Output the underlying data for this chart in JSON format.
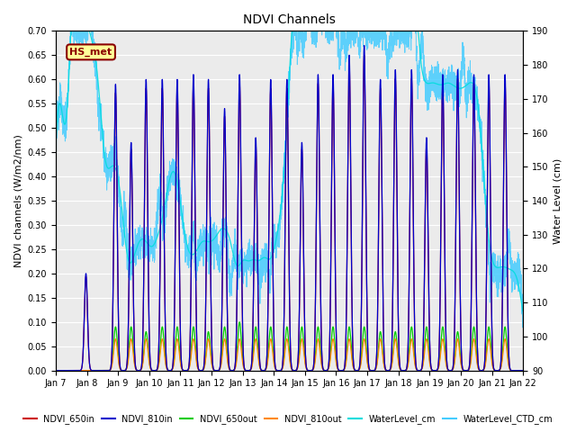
{
  "title": "NDVI Channels",
  "ylabel_left": "NDVI channels (W/m2/nm)",
  "ylabel_right": "Water Level (cm)",
  "ylim_left": [
    0.0,
    0.7
  ],
  "ylim_right": [
    90,
    190
  ],
  "yticks_left": [
    0.0,
    0.05,
    0.1,
    0.15,
    0.2,
    0.25,
    0.3,
    0.35,
    0.4,
    0.45,
    0.5,
    0.55,
    0.6,
    0.65,
    0.7
  ],
  "yticks_right": [
    90,
    100,
    110,
    120,
    130,
    140,
    150,
    160,
    170,
    180,
    190
  ],
  "annotation_text": "HS_met",
  "annotation_color": "#8B0000",
  "annotation_bg": "#FFFF99",
  "series_colors": {
    "NDVI_650in": "#CC0000",
    "NDVI_810in": "#0000CC",
    "NDVI_650out": "#00CC00",
    "NDVI_810out": "#FF8800",
    "WaterLevel_cm": "#00DDDD",
    "WaterLevel_CTD_cm": "#44CCFF"
  },
  "x_start": 7.0,
  "x_end": 22.0,
  "xtick_positions": [
    7,
    8,
    9,
    10,
    11,
    12,
    13,
    14,
    15,
    16,
    17,
    18,
    19,
    20,
    21,
    22
  ],
  "xtick_labels": [
    "Jan 7",
    "Jan 8",
    "Jan 9",
    "Jan 10",
    "Jan 11",
    "Jan 12",
    "Jan 13",
    "Jan 14",
    "Jan 15",
    "Jan 16",
    "Jan 17",
    "Jan 18",
    "Jan 19",
    "Jan 20",
    "Jan 21",
    "Jan 22"
  ],
  "plot_bg": "#EBEBEB",
  "ndvi_spike_centers": [
    7.97,
    8.45,
    8.92,
    9.42,
    9.9,
    10.42,
    10.9,
    11.42,
    11.9,
    12.42,
    12.9,
    13.42,
    13.9,
    14.42,
    14.9,
    15.42,
    15.9,
    16.42,
    16.9,
    17.42,
    17.9,
    18.42,
    18.9,
    19.42,
    19.9,
    20.42,
    20.9,
    21.42
  ],
  "heights_810in": [
    0.2,
    0.0,
    0.59,
    0.47,
    0.6,
    0.6,
    0.6,
    0.61,
    0.6,
    0.54,
    0.61,
    0.48,
    0.6,
    0.6,
    0.47,
    0.61,
    0.61,
    0.65,
    0.67,
    0.6,
    0.62,
    0.62,
    0.48,
    0.61,
    0.62,
    0.61,
    0.61,
    0.61
  ],
  "heights_650out": [
    0.0,
    0.0,
    0.09,
    0.09,
    0.08,
    0.09,
    0.09,
    0.09,
    0.08,
    0.09,
    0.1,
    0.09,
    0.09,
    0.09,
    0.09,
    0.09,
    0.09,
    0.09,
    0.09,
    0.08,
    0.08,
    0.09,
    0.09,
    0.09,
    0.08,
    0.09,
    0.09,
    0.09
  ],
  "heights_810out": [
    0.0,
    0.0,
    0.065,
    0.065,
    0.065,
    0.065,
    0.065,
    0.065,
    0.065,
    0.065,
    0.065,
    0.065,
    0.065,
    0.065,
    0.065,
    0.065,
    0.065,
    0.065,
    0.065,
    0.065,
    0.065,
    0.065,
    0.065,
    0.065,
    0.065,
    0.065,
    0.065,
    0.065
  ],
  "tidal_peaks_cm": [
    [
      7.1,
      165
    ],
    [
      7.55,
      165
    ],
    [
      7.75,
      162
    ],
    [
      8.05,
      158
    ],
    [
      8.35,
      155
    ],
    [
      8.7,
      128
    ],
    [
      8.95,
      125
    ],
    [
      9.15,
      115
    ],
    [
      9.5,
      112
    ],
    [
      9.75,
      115
    ],
    [
      10.0,
      113
    ],
    [
      10.3,
      118
    ],
    [
      10.6,
      125
    ],
    [
      10.85,
      128
    ],
    [
      11.1,
      115
    ],
    [
      11.4,
      113
    ],
    [
      11.7,
      118
    ],
    [
      12.0,
      116
    ],
    [
      12.3,
      120
    ],
    [
      12.6,
      120
    ],
    [
      13.0,
      117
    ],
    [
      13.35,
      116
    ],
    [
      13.7,
      117
    ],
    [
      14.05,
      115
    ],
    [
      14.3,
      116
    ],
    [
      14.55,
      148
    ],
    [
      14.8,
      170
    ],
    [
      15.1,
      173
    ],
    [
      15.35,
      170
    ],
    [
      15.55,
      160
    ],
    [
      15.75,
      172
    ],
    [
      16.0,
      170
    ],
    [
      16.25,
      173
    ],
    [
      16.5,
      172
    ],
    [
      16.7,
      170
    ],
    [
      16.9,
      165
    ],
    [
      17.1,
      160
    ],
    [
      17.3,
      155
    ],
    [
      17.55,
      180
    ],
    [
      17.75,
      188
    ],
    [
      17.95,
      188
    ],
    [
      18.15,
      185
    ],
    [
      18.35,
      188
    ],
    [
      18.6,
      140
    ],
    [
      18.85,
      138
    ],
    [
      19.1,
      140
    ],
    [
      19.35,
      138
    ],
    [
      19.6,
      140
    ],
    [
      19.85,
      138
    ],
    [
      20.1,
      138
    ],
    [
      20.35,
      140
    ],
    [
      20.6,
      140
    ],
    [
      20.85,
      110
    ],
    [
      21.1,
      108
    ],
    [
      21.35,
      110
    ],
    [
      21.6,
      108
    ],
    [
      21.85,
      110
    ]
  ]
}
